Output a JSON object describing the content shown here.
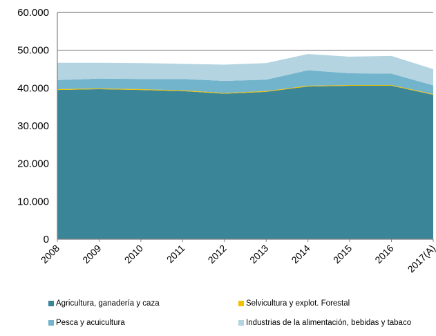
{
  "chart_data": {
    "type": "area",
    "stacked": true,
    "x": [
      "2008",
      "2009",
      "2010",
      "2011",
      "2012",
      "2013",
      "2014",
      "2015",
      "2016",
      "2017(A)"
    ],
    "ylim": [
      0,
      60000
    ],
    "y_ticks": [
      0,
      10000,
      20000,
      30000,
      40000,
      50000,
      60000
    ],
    "y_tick_labels": [
      "0",
      "10.000",
      "20.000",
      "30.000",
      "40.000",
      "50.000",
      "60.000"
    ],
    "grid": "horizontal",
    "legend_position": "bottom",
    "series": [
      {
        "name": "Agricultura, ganadería y caza",
        "color": "#3B8598",
        "values": [
          39500,
          39700,
          39500,
          39200,
          38500,
          39000,
          40400,
          40600,
          40600,
          38200
        ]
      },
      {
        "name": "Selvicultura y explot. Forestal",
        "color": "#F2C200",
        "values": [
          200,
          200,
          200,
          200,
          200,
          200,
          200,
          200,
          200,
          200
        ]
      },
      {
        "name": "Pesca y acuicultura",
        "color": "#72B4CB",
        "values": [
          2400,
          2600,
          2700,
          3000,
          3200,
          3000,
          4100,
          3100,
          3000,
          2300
        ]
      },
      {
        "name": "Industrias de la alimentación, bebidas y tabaco",
        "color": "#B3D4E0",
        "values": [
          4600,
          4200,
          4200,
          4000,
          4300,
          4400,
          4300,
          4400,
          4700,
          4300
        ]
      }
    ]
  }
}
